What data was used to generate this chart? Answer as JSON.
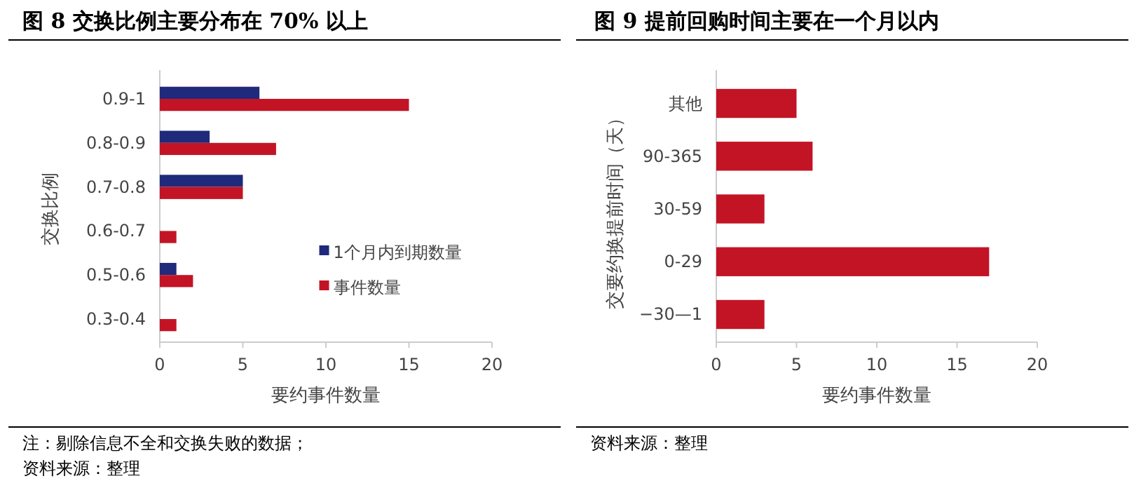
{
  "chart_data": [
    {
      "type": "bar",
      "orientation": "horizontal",
      "title": "图 8  交换比例主要分布在 70% 以上",
      "xlabel": "要约事件数量",
      "ylabel": "交换比例",
      "categories": [
        "0.9-1",
        "0.8-0.9",
        "0.7-0.8",
        "0.6-0.7",
        "0.5-0.6",
        "0.3-0.4"
      ],
      "series": [
        {
          "name": "1个月内到期数量",
          "color": "#1f2a7c",
          "values": [
            6,
            3,
            5,
            0,
            1,
            0
          ]
        },
        {
          "name": "事件数量",
          "color": "#c31425",
          "values": [
            15,
            7,
            5,
            1,
            2,
            1
          ]
        }
      ],
      "xlim": [
        0,
        20
      ],
      "xticks": [
        0,
        5,
        10,
        15,
        20
      ],
      "grid": false,
      "legend": "bottom right",
      "annotations": [
        "注：剔除信息不全和交换失败的数据；",
        "资料来源：整理"
      ]
    },
    {
      "type": "bar",
      "orientation": "horizontal",
      "title": "图 9  提前回购时间主要在一个月以内",
      "xlabel": "要约事件数量",
      "ylabel": "交要约换提前时间（天）",
      "categories": [
        "其他",
        "90-365",
        "30-59",
        "0-29",
        "−30—1"
      ],
      "series": [
        {
          "color": "#c31425",
          "values": [
            5,
            6,
            3,
            17,
            3
          ]
        }
      ],
      "xlim": [
        0,
        20
      ],
      "xticks": [
        0,
        5,
        10,
        15,
        20
      ],
      "grid": false,
      "annotations": [
        "资料来源：整理"
      ]
    }
  ]
}
